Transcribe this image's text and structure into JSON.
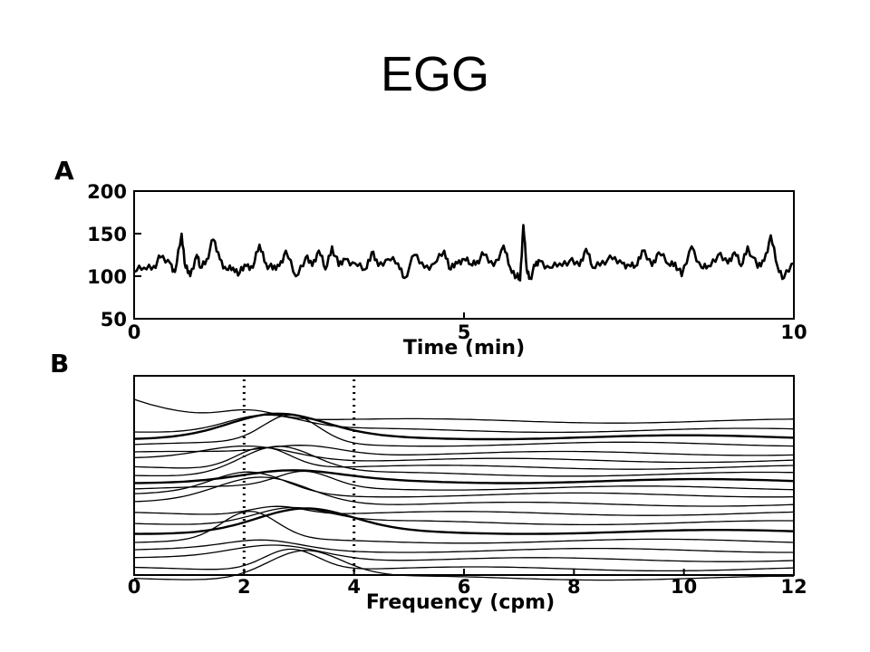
{
  "slide": {
    "title": "EGG"
  },
  "chart_data": [
    {
      "type": "line",
      "panel_label": "A",
      "xlabel": "Time (min)",
      "ylabel": "",
      "xlim": [
        0,
        10
      ],
      "ylim": [
        50,
        200
      ],
      "xticks": [
        "0",
        "5",
        "10"
      ],
      "yticks": [
        "200",
        "150",
        "100",
        "50"
      ],
      "grid": false,
      "series": [
        {
          "x": [
            0,
            0.15,
            0.3,
            0.4,
            0.55,
            0.62,
            0.72,
            0.78,
            0.85,
            0.95,
            1.0,
            1.1,
            1.2,
            1.3,
            1.4,
            1.5,
            1.6,
            1.7,
            1.8,
            1.9,
            2.0,
            2.1,
            2.2,
            2.3,
            2.45,
            2.6,
            2.7,
            2.8,
            2.9,
            3.0,
            3.1,
            3.2,
            3.35,
            3.5,
            3.6,
            3.7,
            3.85,
            4.0,
            4.1,
            4.25,
            4.4,
            4.55,
            4.7,
            4.8,
            4.9,
            5.0,
            5.1,
            5.2,
            5.3,
            5.45,
            5.6,
            5.7,
            5.8,
            5.85,
            5.9,
            5.95,
            6.0,
            6.08,
            6.15,
            6.3,
            6.45,
            6.6,
            6.75,
            6.85,
            6.95,
            7.1,
            7.25,
            7.4,
            7.5,
            7.6,
            7.7,
            7.85,
            7.95,
            8.1,
            8.2,
            8.3,
            8.45,
            8.6,
            8.7,
            8.85,
            9.0,
            9.1,
            9.2,
            9.3,
            9.45,
            9.55,
            9.65,
            9.75,
            9.85,
            10.0
          ],
          "y": [
            105,
            110,
            112,
            122,
            115,
            105,
            150,
            110,
            100,
            125,
            110,
            120,
            143,
            120,
            108,
            110,
            104,
            112,
            110,
            137,
            115,
            108,
            112,
            130,
            100,
            122,
            112,
            130,
            108,
            135,
            112,
            120,
            115,
            108,
            128,
            112,
            120,
            115,
            98,
            125,
            110,
            115,
            130,
            108,
            115,
            120,
            114,
            118,
            125,
            112,
            136,
            110,
            100,
            95,
            160,
            108,
            98,
            112,
            118,
            110,
            115,
            118,
            112,
            132,
            110,
            118,
            120,
            115,
            113,
            112,
            130,
            112,
            128,
            114,
            116,
            100,
            135,
            110,
            112,
            125,
            115,
            128,
            112,
            135,
            110,
            118,
            148,
            112,
            98,
            115
          ]
        }
      ]
    },
    {
      "type": "line",
      "panel_label": "B",
      "xlabel": "Frequency (cpm)",
      "ylabel": "",
      "xlim": [
        0,
        12
      ],
      "xticks": [
        "0",
        "2",
        "4",
        "6",
        "8",
        "10",
        "12"
      ],
      "reference_lines_x": [
        2,
        4
      ],
      "grid": false,
      "series_stacked_offsets": [
        0,
        4,
        7,
        10,
        14,
        17,
        20,
        23,
        26,
        29,
        32,
        36,
        40,
        44,
        48,
        52,
        56,
        60,
        64,
        68
      ]
    }
  ]
}
